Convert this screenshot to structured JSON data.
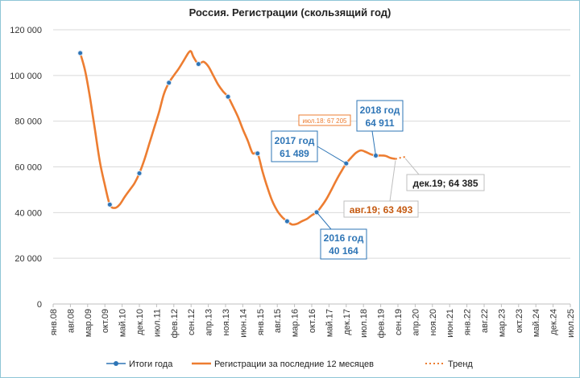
{
  "chart_data": {
    "type": "line",
    "title": "Россия. Регистрации (скользящий год)",
    "ylim": [
      0,
      120000
    ],
    "y_ticks": [
      "0",
      "20 000",
      "40 000",
      "60 000",
      "80 000",
      "100 000",
      "120 000"
    ],
    "x_categories": [
      "янв.08",
      "авг.08",
      "мар.09",
      "окт.09",
      "май.10",
      "дек.10",
      "июл.11",
      "фев.12",
      "сен.12",
      "апр.13",
      "ноя.13",
      "июн.14",
      "янв.15",
      "авг.15",
      "мар.16",
      "окт.16",
      "май.17",
      "дек.17",
      "июл.18",
      "фев.19",
      "сен.19",
      "апр.20",
      "ноя.20",
      "июн.21",
      "янв.22",
      "авг.22",
      "мар.23",
      "окт.23",
      "май.24",
      "дек.24",
      "июл.25"
    ],
    "x_range_months": [
      0,
      210
    ],
    "grid": "horizontal",
    "legend_position": "bottom",
    "series": [
      {
        "name": "Итоги года",
        "color": "#2e75b6",
        "points": [
          [
            11,
            109800
          ],
          [
            23,
            43500
          ],
          [
            35,
            57200
          ],
          [
            47,
            96800
          ],
          [
            59,
            105000
          ],
          [
            71,
            90700
          ],
          [
            83,
            65900
          ],
          [
            95,
            36200
          ],
          [
            107,
            40164
          ],
          [
            119,
            61489
          ],
          [
            131,
            64911
          ]
        ]
      },
      {
        "name": "Регистрации за последние 12 месяцев",
        "color": "#ed7d31",
        "points": [
          [
            11,
            109800
          ],
          [
            13,
            102000
          ],
          [
            15,
            90000
          ],
          [
            17,
            76000
          ],
          [
            19,
            62000
          ],
          [
            21,
            52000
          ],
          [
            23,
            43500
          ],
          [
            25,
            42000
          ],
          [
            27,
            43500
          ],
          [
            29,
            46800
          ],
          [
            31,
            49800
          ],
          [
            33,
            52800
          ],
          [
            35,
            57200
          ],
          [
            37,
            63000
          ],
          [
            39,
            70000
          ],
          [
            41,
            77000
          ],
          [
            43,
            84000
          ],
          [
            45,
            92000
          ],
          [
            47,
            96800
          ],
          [
            49,
            100000
          ],
          [
            51,
            103000
          ],
          [
            53,
            106500
          ],
          [
            55,
            110000
          ],
          [
            56,
            110500
          ],
          [
            57,
            108000
          ],
          [
            59,
            105000
          ],
          [
            61,
            106000
          ],
          [
            63,
            104000
          ],
          [
            65,
            100000
          ],
          [
            67,
            96000
          ],
          [
            69,
            93000
          ],
          [
            71,
            90700
          ],
          [
            73,
            86500
          ],
          [
            75,
            82000
          ],
          [
            77,
            76500
          ],
          [
            79,
            71500
          ],
          [
            81,
            66000
          ],
          [
            83,
            65900
          ],
          [
            85,
            58000
          ],
          [
            87,
            51000
          ],
          [
            89,
            45000
          ],
          [
            91,
            40800
          ],
          [
            93,
            38000
          ],
          [
            95,
            36200
          ],
          [
            97,
            34800
          ],
          [
            99,
            35100
          ],
          [
            101,
            36200
          ],
          [
            103,
            37200
          ],
          [
            105,
            38800
          ],
          [
            107,
            40164
          ],
          [
            109,
            42800
          ],
          [
            111,
            46000
          ],
          [
            113,
            50000
          ],
          [
            115,
            54200
          ],
          [
            117,
            58000
          ],
          [
            119,
            61489
          ],
          [
            121,
            64000
          ],
          [
            123,
            66200
          ],
          [
            125,
            67205
          ],
          [
            127,
            66500
          ],
          [
            129,
            65500
          ],
          [
            131,
            64911
          ],
          [
            133,
            65000
          ],
          [
            135,
            64800
          ],
          [
            137,
            63900
          ],
          [
            139,
            63493
          ]
        ]
      },
      {
        "name": "Тренд",
        "color": "#ed7d31",
        "dashed": true,
        "points": [
          [
            139,
            63493
          ],
          [
            140,
            63700
          ],
          [
            141,
            64000
          ],
          [
            142,
            64200
          ],
          [
            143,
            64385
          ]
        ]
      }
    ],
    "annotations": [
      {
        "text": "июл.18: 67 205",
        "style": "small-orange"
      },
      {
        "lines": [
          "2018 год",
          "64 911"
        ],
        "style": "blue-box"
      },
      {
        "lines": [
          "2017 год",
          "61 489"
        ],
        "style": "blue-box"
      },
      {
        "lines": [
          "2016 год",
          "40 164"
        ],
        "style": "blue-box"
      },
      {
        "text": "авг.19;  63 493",
        "style": "orange-box"
      },
      {
        "text": "дек.19;  64 385",
        "style": "black-box"
      }
    ]
  }
}
